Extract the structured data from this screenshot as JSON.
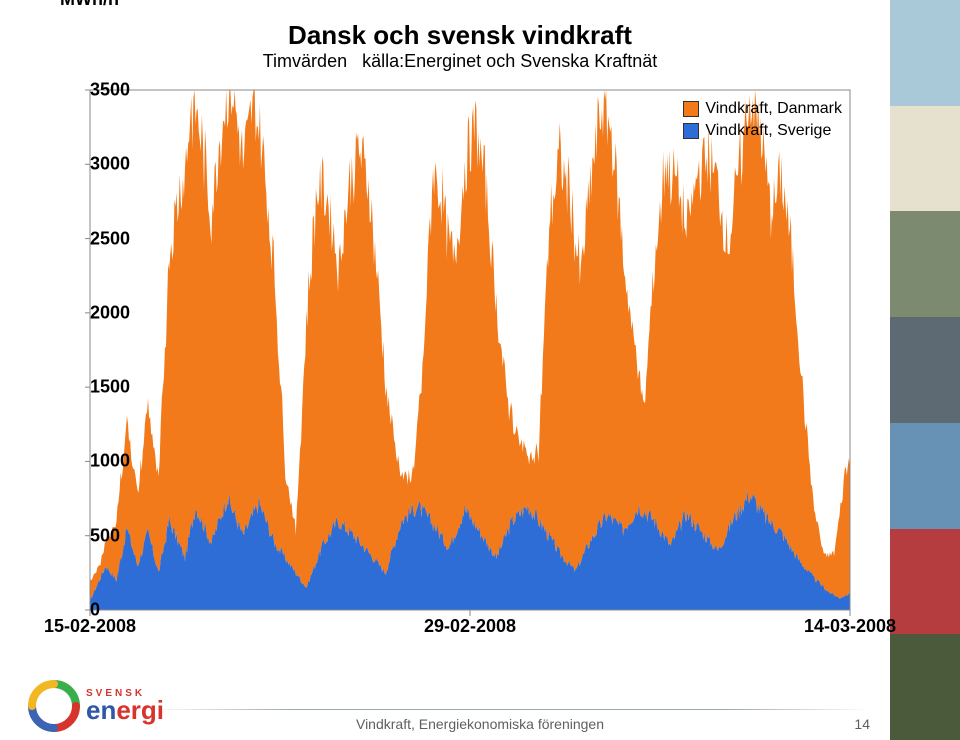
{
  "chart": {
    "type": "area",
    "y_axis_title": "MWh/h",
    "title": "Dansk och svensk vindkraft",
    "subtitle_left": "Timvärden",
    "subtitle_right": "källa:Energinet och Svenska Kraftnät",
    "ylim": [
      0,
      3500
    ],
    "ytick_step": 500,
    "yticks": [
      0,
      500,
      1000,
      1500,
      2000,
      2500,
      3000,
      3500
    ],
    "xticks": [
      "15-02-2008",
      "29-02-2008",
      "14-03-2008"
    ],
    "n_points": 720,
    "background_color": "#ffffff",
    "plot_border_color": "#888888",
    "title_fontsize": 26,
    "label_fontsize": 18,
    "legend_fontsize": 16,
    "legend": [
      {
        "label": "Vindkraft, Danmark",
        "color": "#f27a1a"
      },
      {
        "label": "Vindkraft, Sverige",
        "color": "#2e6cd6"
      }
    ],
    "series": {
      "sverige": {
        "color": "#2e6cd6",
        "anchors": [
          [
            0,
            60
          ],
          [
            15,
            300
          ],
          [
            25,
            200
          ],
          [
            35,
            550
          ],
          [
            45,
            300
          ],
          [
            55,
            520
          ],
          [
            65,
            250
          ],
          [
            75,
            600
          ],
          [
            90,
            350
          ],
          [
            100,
            700
          ],
          [
            115,
            450
          ],
          [
            130,
            760
          ],
          [
            145,
            500
          ],
          [
            160,
            720
          ],
          [
            175,
            450
          ],
          [
            190,
            300
          ],
          [
            205,
            150
          ],
          [
            220,
            430
          ],
          [
            235,
            600
          ],
          [
            250,
            500
          ],
          [
            265,
            380
          ],
          [
            280,
            250
          ],
          [
            295,
            600
          ],
          [
            310,
            700
          ],
          [
            325,
            580
          ],
          [
            340,
            420
          ],
          [
            355,
            680
          ],
          [
            370,
            520
          ],
          [
            385,
            350
          ],
          [
            400,
            600
          ],
          [
            415,
            700
          ],
          [
            430,
            550
          ],
          [
            445,
            380
          ],
          [
            460,
            260
          ],
          [
            475,
            480
          ],
          [
            490,
            640
          ],
          [
            505,
            540
          ],
          [
            520,
            700
          ],
          [
            535,
            600
          ],
          [
            550,
            430
          ],
          [
            565,
            650
          ],
          [
            580,
            520
          ],
          [
            595,
            400
          ],
          [
            610,
            620
          ],
          [
            625,
            780
          ],
          [
            640,
            620
          ],
          [
            655,
            520
          ],
          [
            670,
            350
          ],
          [
            685,
            220
          ],
          [
            700,
            120
          ],
          [
            710,
            80
          ],
          [
            720,
            110
          ]
        ]
      },
      "danmark": {
        "color": "#f27a1a",
        "anchors": [
          [
            0,
            120
          ],
          [
            10,
            100
          ],
          [
            20,
            260
          ],
          [
            35,
            720
          ],
          [
            45,
            480
          ],
          [
            55,
            850
          ],
          [
            65,
            600
          ],
          [
            75,
            1800
          ],
          [
            85,
            2400
          ],
          [
            95,
            2800
          ],
          [
            105,
            2600
          ],
          [
            115,
            2200
          ],
          [
            125,
            2650
          ],
          [
            135,
            2850
          ],
          [
            145,
            2500
          ],
          [
            155,
            2750
          ],
          [
            165,
            2350
          ],
          [
            175,
            1800
          ],
          [
            185,
            600
          ],
          [
            195,
            280
          ],
          [
            205,
            1800
          ],
          [
            215,
            2500
          ],
          [
            225,
            2300
          ],
          [
            235,
            1700
          ],
          [
            245,
            2300
          ],
          [
            255,
            2650
          ],
          [
            265,
            2450
          ],
          [
            275,
            1700
          ],
          [
            285,
            900
          ],
          [
            295,
            320
          ],
          [
            305,
            200
          ],
          [
            315,
            900
          ],
          [
            325,
            2400
          ],
          [
            335,
            2250
          ],
          [
            345,
            1850
          ],
          [
            355,
            2300
          ],
          [
            365,
            2700
          ],
          [
            375,
            2400
          ],
          [
            385,
            1700
          ],
          [
            395,
            900
          ],
          [
            405,
            520
          ],
          [
            415,
            350
          ],
          [
            425,
            460
          ],
          [
            435,
            2100
          ],
          [
            445,
            2650
          ],
          [
            455,
            2500
          ],
          [
            465,
            1900
          ],
          [
            475,
            2450
          ],
          [
            485,
            2800
          ],
          [
            495,
            2550
          ],
          [
            505,
            1850
          ],
          [
            515,
            1200
          ],
          [
            525,
            700
          ],
          [
            535,
            1750
          ],
          [
            545,
            2550
          ],
          [
            555,
            2400
          ],
          [
            565,
            1900
          ],
          [
            575,
            2350
          ],
          [
            585,
            2600
          ],
          [
            595,
            2450
          ],
          [
            605,
            1900
          ],
          [
            615,
            2300
          ],
          [
            625,
            2700
          ],
          [
            635,
            2550
          ],
          [
            645,
            2100
          ],
          [
            655,
            2400
          ],
          [
            665,
            2000
          ],
          [
            675,
            1200
          ],
          [
            685,
            500
          ],
          [
            695,
            220
          ],
          [
            705,
            280
          ],
          [
            715,
            820
          ],
          [
            720,
            900
          ]
        ]
      }
    }
  },
  "footer": {
    "text": "Vindkraft, Energiekonomiska föreningen",
    "page": "14",
    "brand_top": "SVENSK",
    "brand_bottom_1": "en",
    "brand_bottom_2": "ergi"
  },
  "side_strip_colors": [
    "#a9c9d9",
    "#e6e0cf",
    "#7c8a6f",
    "#5d6a73",
    "#6892b5",
    "#b53c3f",
    "#4a5a3b"
  ]
}
